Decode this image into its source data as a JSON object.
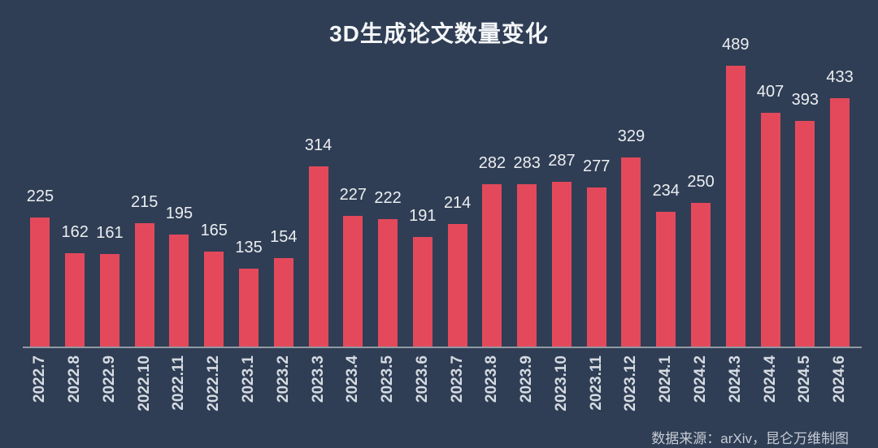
{
  "chart": {
    "title": "3D生成论文数量变化",
    "source_note": "数据来源：arXiv，昆仑万维制图"
  },
  "chart_data": {
    "type": "bar",
    "title": "3D生成论文数量变化",
    "categories": [
      "2022.7",
      "2022.8",
      "2022.9",
      "2022.10",
      "2022.11",
      "2022.12",
      "2023.1",
      "2023.2",
      "2023.3",
      "2023.4",
      "2023.5",
      "2023.6",
      "2023.7",
      "2023.8",
      "2023.9",
      "2023.10",
      "2023.11",
      "2023.12",
      "2024.1",
      "2024.2",
      "2024.3",
      "2024.4",
      "2024.5",
      "2024.6"
    ],
    "values": [
      225,
      162,
      161,
      215,
      195,
      165,
      135,
      154,
      314,
      227,
      222,
      191,
      214,
      282,
      283,
      287,
      277,
      329,
      234,
      250,
      489,
      407,
      393,
      433
    ],
    "series_name": "论文数量",
    "xlabel": "",
    "ylabel": "",
    "ylim": [
      0,
      489
    ],
    "grid": false,
    "legend": false,
    "value_labels": true,
    "x_tick_rotation": 90,
    "colors": {
      "background": "#2F3E55",
      "bar": "#E4495B",
      "value_label": "#ECEEF1",
      "x_tick_label": "#D6DBE2",
      "axis_line": "#939AA3",
      "title": "#F4F6F8",
      "source_note": "#C7CCD4"
    }
  }
}
